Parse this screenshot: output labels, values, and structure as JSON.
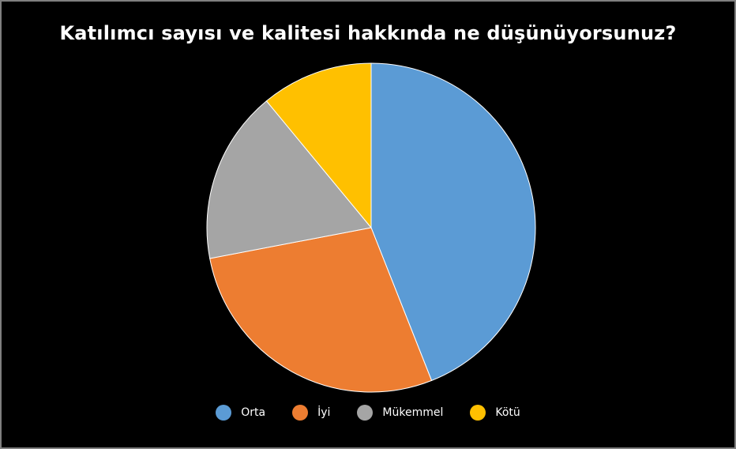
{
  "chart_data": {
    "type": "pie",
    "title": "Katılımcı sayısı ve kalitesi hakkında ne düşünüyorsunuz?",
    "categories": [
      "Orta",
      "İyi",
      "Mükemmel",
      "Kötü"
    ],
    "values": [
      44,
      28,
      17,
      11
    ],
    "colors": [
      "#5B9BD5",
      "#ED7D31",
      "#A5A5A5",
      "#FFC000"
    ],
    "legend_position": "bottom",
    "start_angle": "top (12 o'clock), clockwise"
  }
}
